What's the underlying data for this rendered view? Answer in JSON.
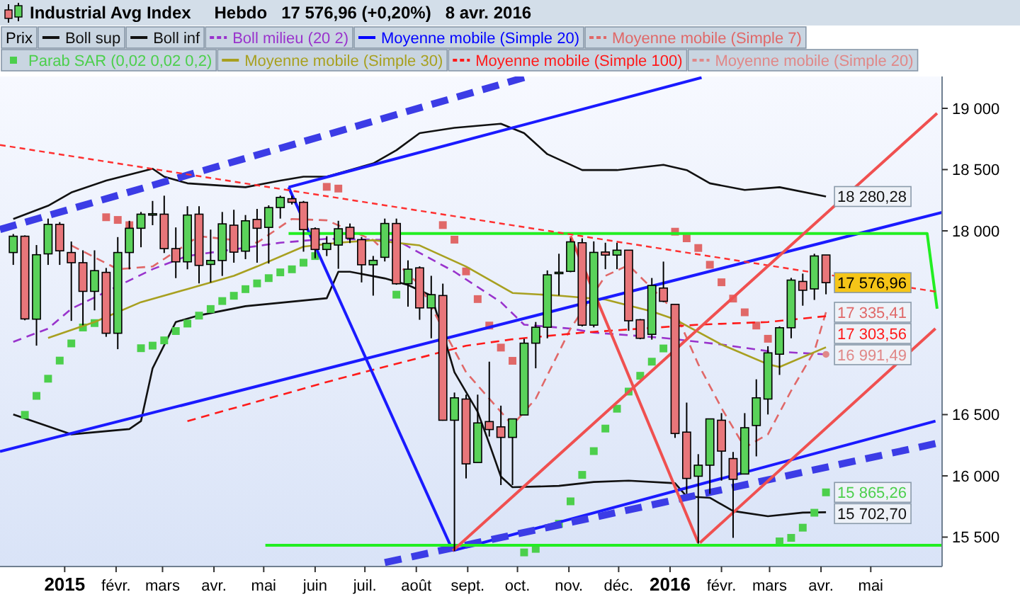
{
  "chart_data": {
    "type": "candlestick",
    "title": "Industrial Avg Index",
    "subtitle": "Hebdo   17 576,96 (+0,20%)   8 avr. 2016",
    "legend": "top",
    "xlim": [
      "2014-11-23",
      "2016-06-13"
    ],
    "xticks": [
      {
        "value": "2015-01-01",
        "label": "2015"
      },
      {
        "value": "2015-02-01",
        "label": "févr."
      },
      {
        "value": "2015-03-01",
        "label": "mars"
      },
      {
        "value": "2015-04-01",
        "label": "avr."
      },
      {
        "value": "2015-05-01",
        "label": "mai"
      },
      {
        "value": "2015-06-01",
        "label": "juin"
      },
      {
        "value": "2015-07-01",
        "label": "juil."
      },
      {
        "value": "2015-08-01",
        "label": "août"
      },
      {
        "value": "2015-09-01",
        "label": "sept."
      },
      {
        "value": "2015-10-01",
        "label": "oct."
      },
      {
        "value": "2015-11-01",
        "label": "nov."
      },
      {
        "value": "2015-12-01",
        "label": "déc."
      },
      {
        "value": "2016-01-01",
        "label": "2016"
      },
      {
        "value": "2016-02-01",
        "label": "févr."
      },
      {
        "value": "2016-03-01",
        "label": "mars"
      },
      {
        "value": "2016-04-01",
        "label": "avr."
      },
      {
        "value": "2016-05-01",
        "label": "mai"
      }
    ],
    "ylim": [
      15260,
      19260
    ],
    "yticks": [
      {
        "value": 15500,
        "label": "15 500"
      },
      {
        "value": 16000,
        "label": "16 000"
      },
      {
        "value": 16500,
        "label": "16 500"
      },
      {
        "value": 18000,
        "label": "18 000"
      },
      {
        "value": 18500,
        "label": "18 500"
      },
      {
        "value": 19000,
        "label": "19 000"
      }
    ],
    "series": [
      {
        "type": "candlestick",
        "name": "Prix",
        "color": "#000000",
        "x": [
          "2014-12-01",
          "2014-12-08",
          "2014-12-15",
          "2014-12-22",
          "2014-12-29",
          "2015-01-05",
          "2015-01-12",
          "2015-01-19",
          "2015-01-26",
          "2015-02-02",
          "2015-02-09",
          "2015-02-16",
          "2015-02-23",
          "2015-03-02",
          "2015-03-09",
          "2015-03-16",
          "2015-03-23",
          "2015-03-30",
          "2015-04-06",
          "2015-04-13",
          "2015-04-20",
          "2015-04-27",
          "2015-05-04",
          "2015-05-11",
          "2015-05-18",
          "2015-05-25",
          "2015-06-01",
          "2015-06-08",
          "2015-06-15",
          "2015-06-22",
          "2015-06-29",
          "2015-07-06",
          "2015-07-13",
          "2015-07-20",
          "2015-07-27",
          "2015-08-03",
          "2015-08-10",
          "2015-08-17",
          "2015-08-24",
          "2015-08-31",
          "2015-09-07",
          "2015-09-14",
          "2015-09-21",
          "2015-09-28",
          "2015-10-05",
          "2015-10-12",
          "2015-10-19",
          "2015-10-26",
          "2015-11-02",
          "2015-11-09",
          "2015-11-16",
          "2015-11-23",
          "2015-11-30",
          "2015-12-07",
          "2015-12-14",
          "2015-12-21",
          "2015-12-28",
          "2016-01-04",
          "2016-01-11",
          "2016-01-18",
          "2016-01-25",
          "2016-02-01",
          "2016-02-08",
          "2016-02-15",
          "2016-02-22",
          "2016-02-29",
          "2016-03-07",
          "2016-03-14",
          "2016-03-21",
          "2016-03-28",
          "2016-04-04"
        ],
        "ohlc": [
          [
            17823,
            17974,
            17722,
            17956
          ],
          [
            17956,
            17963,
            17270,
            17281
          ],
          [
            17279,
            17884,
            17063,
            17805
          ],
          [
            17812,
            18100,
            17722,
            18053
          ],
          [
            18053,
            18071,
            17722,
            17837
          ],
          [
            17823,
            17913,
            17265,
            17740
          ],
          [
            17740,
            17841,
            17229,
            17506
          ],
          [
            17506,
            17841,
            17351,
            17675
          ],
          [
            17661,
            17697,
            17135,
            17164
          ],
          [
            17164,
            17949,
            17034,
            17823
          ],
          [
            17823,
            18082,
            17686,
            18021
          ],
          [
            18021,
            18154,
            17866,
            18136
          ],
          [
            18136,
            18244,
            18046,
            18140
          ],
          [
            18136,
            18287,
            17819,
            17855
          ],
          [
            17855,
            18028,
            17614,
            17747
          ],
          [
            17747,
            18201,
            17686,
            18129
          ],
          [
            18136,
            18201,
            17571,
            17718
          ],
          [
            17726,
            18010,
            17578,
            17758
          ],
          [
            17758,
            18154,
            17632,
            18057
          ],
          [
            18046,
            18172,
            17740,
            17826
          ],
          [
            17834,
            18129,
            17769,
            18082
          ],
          [
            18093,
            18179,
            17740,
            18021
          ],
          [
            18028,
            18208,
            17733,
            18190
          ],
          [
            18190,
            18287,
            18100,
            18273
          ],
          [
            18262,
            18287,
            18215,
            18233
          ],
          [
            18233,
            18244,
            17830,
            18010
          ],
          [
            18017,
            18028,
            17776,
            17848
          ],
          [
            17848,
            17956,
            17794,
            17898
          ],
          [
            17884,
            18082,
            17690,
            18017
          ],
          [
            18029,
            18060,
            17900,
            17939
          ],
          [
            17928,
            17950,
            17579,
            17723
          ],
          [
            17723,
            17795,
            17471,
            17759
          ],
          [
            17784,
            18100,
            17750,
            18060
          ],
          [
            18060,
            18100,
            17560,
            17568
          ],
          [
            17568,
            17759,
            17381,
            17687
          ],
          [
            17698,
            17710,
            17274,
            17371
          ],
          [
            17371,
            17633,
            17123,
            17479
          ],
          [
            17472,
            17569,
            16450,
            16454
          ],
          [
            16454,
            16680,
            15386,
            16637
          ],
          [
            16627,
            16663,
            15979,
            16098
          ],
          [
            16109,
            16663,
            16109,
            16432
          ],
          [
            16443,
            16932,
            16321,
            16378
          ],
          [
            16400,
            16573,
            15925,
            16314
          ],
          [
            16314,
            16465,
            15925,
            16465
          ],
          [
            16497,
            17119,
            16497,
            17083
          ],
          [
            17083,
            17256,
            16878,
            17213
          ],
          [
            17213,
            17677,
            17123,
            17641
          ],
          [
            17659,
            17813,
            17472,
            17662
          ],
          [
            17669,
            17939,
            17662,
            17910
          ],
          [
            17903,
            17939,
            17220,
            17230
          ],
          [
            17230,
            17914,
            17212,
            17824
          ],
          [
            17827,
            17903,
            17687,
            17802
          ],
          [
            17802,
            17903,
            17687,
            17842
          ],
          [
            17842,
            17842,
            17184,
            17266
          ],
          [
            17274,
            17280,
            17115,
            17123
          ],
          [
            17155,
            17615,
            17112,
            17554
          ],
          [
            17533,
            17749,
            17418,
            17425
          ],
          [
            17400,
            17400,
            16310,
            16346
          ],
          [
            16357,
            16598,
            15853,
            15979
          ],
          [
            15997,
            16177,
            15447,
            16087
          ],
          [
            16087,
            16465,
            15853,
            16465
          ],
          [
            16454,
            16512,
            15961,
            16202
          ],
          [
            16141,
            16195,
            15494,
            15972
          ],
          [
            16015,
            16512,
            16015,
            16393
          ],
          [
            16411,
            16788,
            16159,
            16637
          ],
          [
            16627,
            17058,
            16501,
            17004
          ],
          [
            16993,
            17220,
            16824,
            17209
          ],
          [
            17209,
            17616,
            17123,
            17598
          ],
          [
            17587,
            17651,
            17389,
            17515
          ],
          [
            17526,
            17813,
            17436,
            17795
          ],
          [
            17803,
            17803,
            17482,
            17576.96
          ]
        ],
        "colors": [
          "#5ad25a",
          "#e8767a",
          "#5ad25a",
          "#5ad25a",
          "#e8767a",
          "#e8767a",
          "#e8767a",
          "#5ad25a",
          "#e8767a",
          "#5ad25a",
          "#5ad25a",
          "#5ad25a",
          "#5ad25a",
          "#e8767a",
          "#e8767a",
          "#5ad25a",
          "#e8767a",
          "#5ad25a",
          "#5ad25a",
          "#e8767a",
          "#5ad25a",
          "#e8767a",
          "#5ad25a",
          "#5ad25a",
          "#e8767a",
          "#e8767a",
          "#e8767a",
          "#5ad25a",
          "#5ad25a",
          "#e8767a",
          "#e8767a",
          "#5ad25a",
          "#5ad25a",
          "#e8767a",
          "#5ad25a",
          "#e8767a",
          "#5ad25a",
          "#e8767a",
          "#5ad25a",
          "#e8767a",
          "#5ad25a",
          "#e8767a",
          "#e8767a",
          "#5ad25a",
          "#5ad25a",
          "#5ad25a",
          "#5ad25a",
          "#5ad25a",
          "#5ad25a",
          "#e8767a",
          "#5ad25a",
          "#e8767a",
          "#5ad25a",
          "#e8767a",
          "#e8767a",
          "#5ad25a",
          "#e8767a",
          "#e8767a",
          "#e8767a",
          "#5ad25a",
          "#5ad25a",
          "#e8767a",
          "#e8767a",
          "#5ad25a",
          "#5ad25a",
          "#5ad25a",
          "#5ad25a",
          "#5ad25a",
          "#e8767a",
          "#5ad25a",
          "#e8767a"
        ],
        "value_labels": [
          null,
          null,
          null,
          null,
          null,
          null,
          null,
          null,
          null,
          null,
          null,
          null,
          null,
          null,
          null,
          null,
          null,
          null,
          null,
          null,
          null,
          null,
          null,
          null,
          null,
          null,
          null,
          null,
          null,
          null,
          null,
          null,
          null,
          null,
          null,
          null,
          null,
          null,
          null,
          null,
          null,
          null,
          null,
          null,
          null,
          null,
          null,
          null,
          null,
          null,
          null,
          null,
          null,
          null,
          null,
          null,
          null,
          null,
          null,
          null,
          null,
          null,
          null,
          null,
          null,
          null,
          null,
          null,
          null,
          null,
          "17 576,96"
        ]
      },
      {
        "type": "line",
        "name": "Boll sup",
        "color": "#111111",
        "x": [
          "2014-12-01",
          "2014-12-22",
          "2015-01-05",
          "2015-01-26",
          "2015-02-23",
          "2015-03-02",
          "2015-03-16",
          "2015-04-20",
          "2015-05-11",
          "2015-05-25",
          "2015-06-08",
          "2015-07-06",
          "2015-07-20",
          "2015-08-03",
          "2015-08-24",
          "2015-09-21",
          "2015-10-05",
          "2015-10-19",
          "2015-11-09",
          "2015-11-30",
          "2015-12-28",
          "2016-01-11",
          "2016-01-25",
          "2016-02-15",
          "2016-03-07",
          "2016-04-04"
        ],
        "values": [
          18097,
          18205,
          18313,
          18410,
          18507,
          18442,
          18388,
          18356,
          18410,
          18442,
          18442,
          18550,
          18658,
          18798,
          18841,
          18874,
          18798,
          18626,
          18496,
          18496,
          18539,
          18496,
          18388,
          18334,
          18356,
          18280.28
        ],
        "value_labels": [
          null,
          null,
          null,
          null,
          null,
          null,
          null,
          null,
          null,
          null,
          null,
          null,
          null,
          null,
          null,
          null,
          null,
          null,
          null,
          null,
          null,
          null,
          null,
          null,
          null,
          "18 280,28"
        ]
      },
      {
        "type": "line",
        "name": "Boll inf",
        "color": "#111111",
        "x": [
          "2014-12-01",
          "2015-01-05",
          "2015-02-09",
          "2015-02-16",
          "2015-02-23",
          "2015-03-09",
          "2015-03-23",
          "2015-04-20",
          "2015-06-08",
          "2015-06-15",
          "2015-06-22",
          "2015-07-13",
          "2015-07-27",
          "2015-08-10",
          "2015-08-17",
          "2015-08-24",
          "2015-09-07",
          "2015-09-14",
          "2015-09-21",
          "2015-09-28",
          "2015-10-26",
          "2015-11-16",
          "2015-12-07",
          "2016-01-04",
          "2016-01-11",
          "2016-01-25",
          "2016-02-08",
          "2016-02-29",
          "2016-03-21",
          "2016-04-04"
        ],
        "values": [
          16501,
          16339,
          16382,
          16447,
          16878,
          17256,
          17310,
          17385,
          17450,
          17666,
          17666,
          17612,
          17558,
          17471,
          17169,
          16846,
          16522,
          16263,
          15994,
          15907,
          15918,
          15950,
          15961,
          15940,
          15832,
          15821,
          15713,
          15670,
          15700,
          15702.7
        ],
        "value_labels": [
          null,
          null,
          null,
          null,
          null,
          null,
          null,
          null,
          null,
          null,
          null,
          null,
          null,
          null,
          null,
          null,
          null,
          null,
          null,
          null,
          null,
          null,
          null,
          null,
          null,
          null,
          null,
          null,
          null,
          "15 702,70"
        ]
      },
      {
        "type": "line",
        "name": "Boll milieu (20 2)",
        "color": "#9933cc",
        "line_style": "dashed",
        "x": [
          "2014-12-01",
          "2014-12-22",
          "2015-01-05",
          "2015-02-23",
          "2015-03-16",
          "2015-04-13",
          "2015-05-11",
          "2015-06-08",
          "2015-07-20",
          "2015-08-24",
          "2015-09-21",
          "2015-10-05",
          "2015-11-02",
          "2015-11-16",
          "2015-12-07",
          "2015-12-28",
          "2016-02-01",
          "2016-02-29",
          "2016-04-04"
        ],
        "values": [
          17094,
          17202,
          17364,
          17687,
          17795,
          17849,
          17903,
          17935,
          17924,
          17666,
          17418,
          17234,
          17202,
          17169,
          17148,
          17126,
          17072,
          17018,
          16991.49
        ]
      },
      {
        "type": "line",
        "name": "Moyenne mobile (Simple 20)",
        "color": "#0000ff"
      },
      {
        "type": "line",
        "name": "Moyenne mobile (Simple 7)",
        "color": "#e06868",
        "line_style": "dashed",
        "x": [
          "2015-01-05",
          "2015-02-02",
          "2015-02-23",
          "2015-03-23",
          "2015-04-27",
          "2015-05-18",
          "2015-06-08",
          "2015-07-06",
          "2015-08-03",
          "2015-08-17",
          "2015-08-31",
          "2015-09-21",
          "2015-09-28",
          "2015-10-12",
          "2015-11-02",
          "2015-11-23",
          "2015-12-07",
          "2016-01-04",
          "2016-01-18",
          "2016-02-01",
          "2016-02-15",
          "2016-02-29",
          "2016-03-14",
          "2016-03-28",
          "2016-04-04"
        ],
        "values": [
          17881,
          17687,
          17709,
          17957,
          17903,
          18097,
          18086,
          17924,
          17558,
          17202,
          16846,
          16522,
          16414,
          16630,
          17202,
          17633,
          17720,
          17342,
          16911,
          16554,
          16231,
          16339,
          16695,
          17018,
          17335.41
        ],
        "value_labels": [
          null,
          null,
          null,
          null,
          null,
          null,
          null,
          null,
          null,
          null,
          null,
          null,
          null,
          null,
          null,
          null,
          null,
          null,
          null,
          null,
          null,
          null,
          null,
          null,
          "17 335,41"
        ]
      },
      {
        "type": "scatter",
        "name": "Parab SAR (0,02 0,02 0,2)",
        "color": "#4ccf4c",
        "marker": "square",
        "x": [
          "2014-12-08",
          "2014-12-15",
          "2014-12-22",
          "2014-12-29",
          "2015-01-05",
          "2015-01-12",
          "2015-01-19",
          "2015-01-26",
          "2015-02-02",
          "2015-02-09",
          "2015-02-16",
          "2015-02-23",
          "2015-03-02",
          "2015-03-09",
          "2015-03-16",
          "2015-03-23",
          "2015-03-30",
          "2015-04-06",
          "2015-04-13",
          "2015-04-20",
          "2015-04-27",
          "2015-05-04",
          "2015-05-11",
          "2015-05-18",
          "2015-05-25",
          "2015-06-01",
          "2015-06-08",
          "2015-06-15",
          "2015-07-20",
          "2015-08-17",
          "2015-08-24",
          "2015-08-31",
          "2015-09-07",
          "2015-09-14",
          "2015-09-21",
          "2015-09-28",
          "2015-10-05",
          "2015-10-12",
          "2015-10-26",
          "2015-11-02",
          "2015-11-09",
          "2015-11-16",
          "2015-11-23",
          "2015-11-30",
          "2015-12-07",
          "2015-12-14",
          "2015-12-21",
          "2015-12-28",
          "2016-01-04",
          "2016-01-11",
          "2016-01-18",
          "2016-01-25",
          "2016-02-01",
          "2016-02-08",
          "2016-02-15",
          "2016-02-22",
          "2016-02-29",
          "2016-03-07",
          "2016-03-14",
          "2016-03-21",
          "2016-03-28",
          "2016-04-04"
        ],
        "values": [
          16498,
          16653,
          16793,
          16941,
          17081,
          17211,
          17247,
          18111,
          18089,
          18046,
          17042,
          17063,
          17106,
          17182,
          17243,
          17308,
          17362,
          17427,
          17470,
          17524,
          17571,
          17614,
          17661,
          17686,
          17740,
          17794,
          18359,
          18345,
          17479,
          18047,
          17928,
          17669,
          17443,
          17227,
          17047,
          16939,
          15375,
          15404,
          15609,
          15792,
          16008,
          16202,
          16386,
          16548,
          16688,
          16817,
          16932,
          17040,
          17993,
          17939,
          17860,
          17723,
          17580,
          17447,
          17335,
          17227,
          17119,
          15465,
          15494,
          15577,
          15699,
          15865.26
        ],
        "colors": [
          "#4ccf4c",
          "#4ccf4c",
          "#4ccf4c",
          "#4ccf4c",
          "#4ccf4c",
          "#4ccf4c",
          "#4ccf4c",
          "#e06868",
          "#e06868",
          "#e06868",
          "#4ccf4c",
          "#4ccf4c",
          "#4ccf4c",
          "#4ccf4c",
          "#4ccf4c",
          "#4ccf4c",
          "#4ccf4c",
          "#4ccf4c",
          "#4ccf4c",
          "#4ccf4c",
          "#4ccf4c",
          "#4ccf4c",
          "#4ccf4c",
          "#4ccf4c",
          "#4ccf4c",
          "#4ccf4c",
          "#e06868",
          "#e06868",
          "#4ccf4c",
          "#e06868",
          "#e06868",
          "#e06868",
          "#e06868",
          "#e06868",
          "#e06868",
          "#e06868",
          "#4ccf4c",
          "#4ccf4c",
          "#4ccf4c",
          "#4ccf4c",
          "#4ccf4c",
          "#4ccf4c",
          "#4ccf4c",
          "#4ccf4c",
          "#4ccf4c",
          "#4ccf4c",
          "#4ccf4c",
          "#4ccf4c",
          "#e06868",
          "#e06868",
          "#e06868",
          "#e06868",
          "#e06868",
          "#e06868",
          "#e06868",
          "#e06868",
          "#e06868",
          "#4ccf4c",
          "#4ccf4c",
          "#4ccf4c",
          "#4ccf4c",
          "#4ccf4c"
        ],
        "value_labels": [
          null,
          null,
          null,
          null,
          null,
          null,
          null,
          null,
          null,
          null,
          null,
          null,
          null,
          null,
          null,
          null,
          null,
          null,
          null,
          null,
          null,
          null,
          null,
          null,
          null,
          null,
          null,
          null,
          null,
          null,
          null,
          null,
          null,
          null,
          null,
          null,
          null,
          null,
          null,
          null,
          null,
          null,
          null,
          null,
          null,
          null,
          null,
          null,
          null,
          null,
          null,
          null,
          null,
          null,
          null,
          null,
          null,
          null,
          null,
          null,
          null,
          "15 865,26"
        ]
      },
      {
        "type": "line",
        "name": "Moyenne mobile (Simple 30)",
        "color": "#a8a020",
        "x": [
          "2014-12-22",
          "2015-01-19",
          "2015-02-16",
          "2015-03-16",
          "2015-04-13",
          "2015-04-27",
          "2015-05-25",
          "2015-06-15",
          "2015-07-06",
          "2015-08-03",
          "2015-08-31",
          "2015-09-28",
          "2015-10-26",
          "2015-11-23",
          "2015-12-21",
          "2016-01-04",
          "2016-02-01",
          "2016-02-29",
          "2016-03-07",
          "2016-04-04"
        ],
        "values": [
          17126,
          17256,
          17418,
          17525,
          17633,
          17709,
          17871,
          17903,
          17924,
          17881,
          17709,
          17493,
          17471,
          17439,
          17342,
          17277,
          17072,
          16911,
          16889,
          17050
        ]
      },
      {
        "type": "line",
        "name": "Moyenne mobile (Simple 100)",
        "color": "#ff1a1a",
        "line_style": "dashed",
        "x": [
          "2015-03-16",
          "2015-06-15",
          "2015-08-03",
          "2015-08-31",
          "2015-09-28",
          "2015-11-09",
          "2016-01-18",
          "2016-02-29",
          "2016-04-04"
        ],
        "values": [
          16447,
          16792,
          16964,
          17062,
          17115,
          17169,
          17234,
          17256,
          17303.56
        ],
        "value_labels": [
          null,
          null,
          null,
          null,
          null,
          null,
          null,
          null,
          "17 303,56"
        ]
      },
      {
        "type": "line",
        "name": "Moyenne mobile (Simple 20)",
        "color": "#e08888",
        "line_style": "dashed",
        "marker": "circle",
        "x": [
          "2016-04-04"
        ],
        "values": [
          16991.49
        ],
        "value_labels": [
          "16 991,49"
        ]
      },
      {
        "type": "line",
        "color": "#1a1aff",
        "x": [
          "2014-11-23",
          "2016-06-13"
        ],
        "values": [
          16199,
          18151
        ]
      },
      {
        "type": "line",
        "color": "#1a1aff",
        "x": [
          "2015-05-16",
          "2016-01-20"
        ],
        "values": [
          18356,
          19251
        ]
      },
      {
        "type": "line",
        "color": "#1a1aff",
        "x": [
          "2015-05-16",
          "2015-08-23"
        ],
        "values": [
          18356,
          15389
        ]
      },
      {
        "type": "line",
        "color": "#1a1aff",
        "x": [
          "2015-08-23",
          "2016-06-09"
        ],
        "values": [
          15389,
          16447
        ]
      },
      {
        "type": "line",
        "color": "#3c3ce6",
        "line_style": "dashed",
        "x": [
          "2014-11-23",
          "2015-10-05"
        ],
        "values": [
          18011,
          19251
        ]
      },
      {
        "type": "line",
        "color": "#3c3ce6",
        "line_style": "dashed",
        "x": [
          "2015-07-13",
          "2016-06-09"
        ],
        "values": [
          15292,
          16263
        ]
      },
      {
        "type": "line",
        "color": "#22ee22",
        "x": [
          "2015-05-16",
          "2016-06-04",
          "2016-06-10"
        ],
        "values": [
          17978,
          17978,
          17364
        ]
      },
      {
        "type": "line",
        "color": "#22ee22",
        "x": [
          "2015-05-02",
          "2016-06-13"
        ],
        "values": [
          15433,
          15433
        ]
      },
      {
        "type": "line",
        "color": "#ff3030",
        "line_style": "dotted",
        "x": [
          "2014-11-23",
          "2016-06-09"
        ],
        "values": [
          18701,
          17504
        ]
      },
      {
        "type": "line",
        "color": "#f05050",
        "x": [
          "2015-08-23",
          "2016-06-10"
        ],
        "values": [
          15389,
          18960
        ]
      },
      {
        "type": "line",
        "color": "#f05050",
        "x": [
          "2016-01-19",
          "2016-06-09"
        ],
        "values": [
          15454,
          17202
        ]
      },
      {
        "type": "line",
        "color": "#f05050",
        "x": [
          "2015-11-02",
          "2016-01-18"
        ],
        "values": [
          17957,
          15454
        ]
      }
    ]
  }
}
